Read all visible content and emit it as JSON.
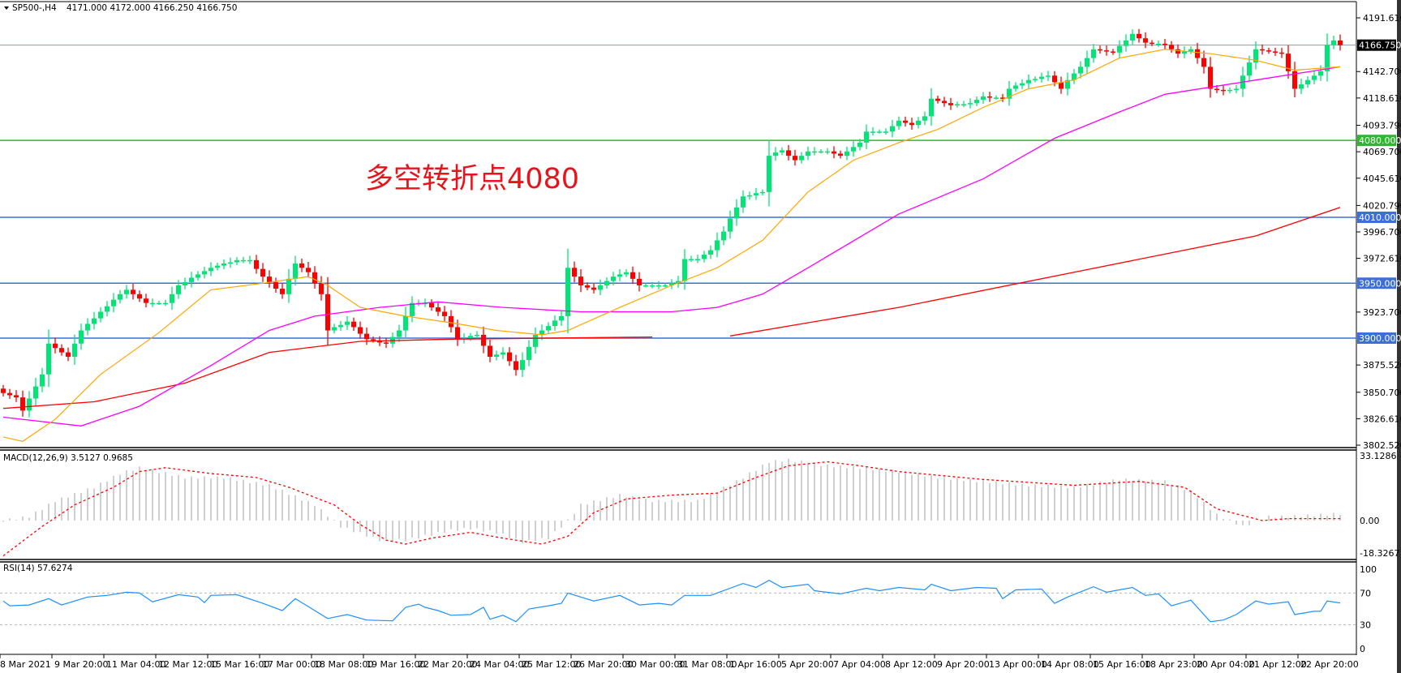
{
  "header": {
    "symbol": "SP500-,H4",
    "ohlc": "4171.000 4172.000 4166.250 4166.750"
  },
  "annotation": "多空转折点4080",
  "colors": {
    "bull": "#00e676",
    "bear": "#ff0000",
    "ma_fast": "#ffa500",
    "ma_mid": "#ff00ff",
    "ma_slow": "#ff0000",
    "level_green": "#2db92d",
    "level_blue": "#3d6fd9",
    "rsi": "#1e90ff",
    "macd_hist": "#c0c0c0",
    "macd_signal": "#ff0000"
  },
  "chart_data": [
    {
      "type": "candlestick",
      "title": "SP500-,H4",
      "price_ticks": [
        "4191.610",
        "4142.700",
        "4118.610",
        "4093.790",
        "4069.700",
        "4045.610",
        "4020.790",
        "3996.700",
        "3972.610",
        "3923.700",
        "3875.520",
        "3850.700",
        "3826.610",
        "3802.520"
      ],
      "ylim": [
        3802.52,
        4191.61
      ],
      "x_tick_labels": [
        "8 Mar 2021",
        "9 Mar 20:00",
        "11 Mar 04:00",
        "12 Mar 12:00",
        "15 Mar 16:00",
        "17 Mar 00:00",
        "18 Mar 08:00",
        "19 Mar 16:00",
        "22 Mar 20:00",
        "24 Mar 04:00",
        "25 Mar 12:00",
        "26 Mar 20:00",
        "30 Mar 00:00",
        "31 Mar 08:00",
        "1 Apr 16:00",
        "5 Apr 20:00",
        "7 Apr 04:00",
        "8 Apr 12:00",
        "9 Apr 20:00",
        "13 Apr 00:00",
        "14 Apr 08:00",
        "15 Apr 16:00",
        "18 Apr 23:00",
        "20 Apr 04:00",
        "21 Apr 12:00",
        "22 Apr 20:00"
      ],
      "current_price": {
        "value": 4166.75,
        "label": "4166.750"
      },
      "levels": [
        {
          "value": 4080,
          "label": "4080.000",
          "color": "#2db92d"
        },
        {
          "value": 4010,
          "label": "4010.000",
          "color": "#3d6fd9"
        },
        {
          "value": 3950,
          "label": "3950.000",
          "color": "#3d6fd9"
        },
        {
          "value": 3900,
          "label": "3900.000",
          "color": "#3d6fd9"
        }
      ],
      "closes": [
        3850,
        3848,
        3846,
        3834,
        3845,
        3856,
        3867,
        3895,
        3891,
        3887,
        3883,
        3895,
        3907,
        3913,
        3918,
        3924,
        3929,
        3935,
        3940,
        3944,
        3940,
        3936,
        3932,
        3932,
        3932,
        3932,
        3940,
        3948,
        3951,
        3955,
        3958,
        3961,
        3964,
        3966,
        3968,
        3969,
        3971,
        3971,
        3971,
        3963,
        3956,
        3951,
        3945,
        3940,
        3954,
        3968,
        3964,
        3960,
        3950,
        3940,
        3907,
        3910,
        3912,
        3915,
        3910,
        3904,
        3899,
        3898,
        3896,
        3895,
        3901,
        3907,
        3920,
        3932,
        3932,
        3932,
        3928,
        3924,
        3920,
        3910,
        3899,
        3900,
        3902,
        3903,
        3893,
        3883,
        3885,
        3887,
        3879,
        3871,
        3880,
        3892,
        3903,
        3907,
        3911,
        3916,
        3920,
        3964,
        3956,
        3948,
        3946,
        3944,
        3948,
        3952,
        3956,
        3958,
        3960,
        3954,
        3948,
        3948,
        3948,
        3948,
        3948,
        3950,
        3952,
        3972,
        3972,
        3972,
        3976,
        3980,
        3989,
        3997,
        4009,
        4019,
        4029,
        4030,
        4032,
        4033,
        4066,
        4069,
        4071,
        4066,
        4062,
        4066,
        4070,
        4070,
        4070,
        4070,
        4068,
        4066,
        4070,
        4074,
        4078,
        4088,
        4088,
        4088,
        4088,
        4093,
        4098,
        4096,
        4094,
        4098,
        4102,
        4118,
        4116,
        4114,
        4112,
        4113,
        4113,
        4114,
        4117,
        4120,
        4119,
        4119,
        4118,
        4127,
        4130,
        4132,
        4135,
        4136,
        4138,
        4139,
        4133,
        4127,
        4135,
        4141,
        4147,
        4155,
        4163,
        4162,
        4161,
        4160,
        4166,
        4171,
        4177,
        4173,
        4169,
        4168,
        4168,
        4167,
        4163,
        4159,
        4161,
        4163,
        4155,
        4147,
        4127,
        4126,
        4125,
        4126,
        4127,
        4139,
        4151,
        4163,
        4162,
        4161,
        4160,
        4159,
        4143,
        4127,
        4131,
        4135,
        4139,
        4143,
        4167,
        4171,
        4166.75
      ],
      "ma_fast": [
        [
          0,
          3810
        ],
        [
          3,
          3806
        ],
        [
          8,
          3826
        ],
        [
          15,
          3867
        ],
        [
          24,
          3905
        ],
        [
          32,
          3944
        ],
        [
          40,
          3950
        ],
        [
          47,
          3956
        ],
        [
          50,
          3948
        ],
        [
          55,
          3928
        ],
        [
          62,
          3920
        ],
        [
          69,
          3914
        ],
        [
          76,
          3907
        ],
        [
          83,
          3903
        ],
        [
          87,
          3907
        ],
        [
          95,
          3928
        ],
        [
          103,
          3948
        ],
        [
          110,
          3964
        ],
        [
          117,
          3989
        ],
        [
          124,
          4033
        ],
        [
          131,
          4062
        ],
        [
          138,
          4078
        ],
        [
          144,
          4090
        ],
        [
          151,
          4110
        ],
        [
          158,
          4127
        ],
        [
          165,
          4135
        ],
        [
          172,
          4155
        ],
        [
          179,
          4163
        ],
        [
          186,
          4159
        ],
        [
          193,
          4153
        ],
        [
          199,
          4144
        ],
        [
          206,
          4147
        ]
      ],
      "ma_mid": [
        [
          0,
          3828
        ],
        [
          12,
          3820
        ],
        [
          21,
          3838
        ],
        [
          32,
          3875
        ],
        [
          41,
          3907
        ],
        [
          48,
          3920
        ],
        [
          58,
          3928
        ],
        [
          67,
          3933
        ],
        [
          77,
          3928
        ],
        [
          89,
          3924
        ],
        [
          103,
          3924
        ],
        [
          110,
          3928
        ],
        [
          117,
          3940
        ],
        [
          124,
          3964
        ],
        [
          138,
          4013
        ],
        [
          151,
          4045
        ],
        [
          162,
          4082
        ],
        [
          172,
          4106
        ],
        [
          179,
          4122
        ],
        [
          193,
          4135
        ],
        [
          206,
          4147
        ]
      ],
      "ma_slow": [
        [
          0,
          3836
        ],
        [
          14,
          3842
        ],
        [
          28,
          3859
        ],
        [
          41,
          3887
        ],
        [
          55,
          3897
        ],
        [
          69,
          3899
        ],
        [
          100,
          3901
        ],
        null,
        [
          112,
          3902
        ],
        [
          138,
          3928
        ],
        [
          165,
          3960
        ],
        [
          193,
          3993
        ],
        [
          206,
          4019
        ]
      ]
    },
    {
      "type": "bar",
      "title": "MACD(12,26,9) 3.5127 0.9685",
      "ticks": [
        "33.1286",
        "0.00",
        "-18.3267"
      ],
      "ylim": [
        -18.3267,
        33.1286
      ],
      "macd": [
        [
          0,
          0
        ],
        [
          4,
          2
        ],
        [
          8,
          10
        ],
        [
          14,
          17
        ],
        [
          18,
          24
        ],
        [
          21,
          27
        ],
        [
          28,
          22
        ],
        [
          34,
          22
        ],
        [
          41,
          18
        ],
        [
          48,
          8
        ],
        [
          52,
          -3
        ],
        [
          58,
          -10
        ],
        [
          62,
          -10
        ],
        [
          69,
          -5
        ],
        [
          72,
          -4
        ],
        [
          76,
          -6
        ],
        [
          80,
          -11
        ],
        [
          84,
          -9
        ],
        [
          87,
          0
        ],
        [
          89,
          8
        ],
        [
          95,
          13
        ],
        [
          100,
          10
        ],
        [
          107,
          10
        ],
        [
          113,
          20
        ],
        [
          118,
          30
        ],
        [
          121,
          31
        ],
        [
          127,
          28
        ],
        [
          132,
          27
        ],
        [
          138,
          25
        ],
        [
          144,
          22
        ],
        [
          151,
          20
        ],
        [
          158,
          18
        ],
        [
          165,
          17
        ],
        [
          172,
          21
        ],
        [
          179,
          20
        ],
        [
          183,
          15
        ],
        [
          187,
          3
        ],
        [
          191,
          -3
        ],
        [
          195,
          2
        ],
        [
          198,
          2
        ],
        [
          206,
          3.5
        ]
      ],
      "signal": [
        [
          0,
          -18
        ],
        [
          6,
          -3
        ],
        [
          11,
          8
        ],
        [
          17,
          17
        ],
        [
          21,
          25
        ],
        [
          25,
          27
        ],
        [
          32,
          24
        ],
        [
          39,
          22
        ],
        [
          44,
          17
        ],
        [
          51,
          8
        ],
        [
          55,
          -2
        ],
        [
          59,
          -10
        ],
        [
          62,
          -12
        ],
        [
          66,
          -9
        ],
        [
          72,
          -6
        ],
        [
          77,
          -9
        ],
        [
          83,
          -12
        ],
        [
          87,
          -8
        ],
        [
          91,
          4
        ],
        [
          96,
          11
        ],
        [
          103,
          13
        ],
        [
          110,
          14
        ],
        [
          116,
          22
        ],
        [
          121,
          28
        ],
        [
          127,
          30
        ],
        [
          132,
          28
        ],
        [
          138,
          25
        ],
        [
          151,
          21
        ],
        [
          165,
          18
        ],
        [
          175,
          20
        ],
        [
          182,
          17
        ],
        [
          187,
          6
        ],
        [
          194,
          0
        ],
        [
          198,
          1
        ],
        [
          206,
          1
        ]
      ]
    },
    {
      "type": "line",
      "title": "RSI(14) 57.6274",
      "ticks": [
        "100",
        "70",
        "30",
        "0"
      ],
      "ylim": [
        0,
        100
      ],
      "levels": [
        70,
        30
      ],
      "rsi": [
        [
          0,
          60
        ],
        [
          1,
          54
        ],
        [
          4,
          55
        ],
        [
          7,
          63
        ],
        [
          9,
          55
        ],
        [
          13,
          65
        ],
        [
          16,
          67
        ],
        [
          19,
          71
        ],
        [
          21,
          70
        ],
        [
          23,
          59
        ],
        [
          27,
          68
        ],
        [
          30,
          65
        ],
        [
          31,
          58
        ],
        [
          32,
          67
        ],
        [
          36,
          68
        ],
        [
          40,
          57
        ],
        [
          43,
          48
        ],
        [
          45,
          63
        ],
        [
          48,
          48
        ],
        [
          50,
          38
        ],
        [
          53,
          43
        ],
        [
          56,
          36
        ],
        [
          60,
          35
        ],
        [
          62,
          52
        ],
        [
          64,
          56
        ],
        [
          65,
          52
        ],
        [
          67,
          48
        ],
        [
          69,
          42
        ],
        [
          72,
          43
        ],
        [
          74,
          52
        ],
        [
          75,
          37
        ],
        [
          77,
          42
        ],
        [
          79,
          34
        ],
        [
          81,
          50
        ],
        [
          84,
          54
        ],
        [
          86,
          57
        ],
        [
          87,
          70
        ],
        [
          91,
          60
        ],
        [
          95,
          67
        ],
        [
          98,
          55
        ],
        [
          101,
          57
        ],
        [
          103,
          55
        ],
        [
          105,
          67
        ],
        [
          109,
          67
        ],
        [
          114,
          82
        ],
        [
          116,
          77
        ],
        [
          118,
          86
        ],
        [
          120,
          77
        ],
        [
          124,
          81
        ],
        [
          125,
          73
        ],
        [
          129,
          69
        ],
        [
          133,
          76
        ],
        [
          135,
          73
        ],
        [
          138,
          77
        ],
        [
          142,
          74
        ],
        [
          143,
          81
        ],
        [
          146,
          73
        ],
        [
          150,
          77
        ],
        [
          153,
          76
        ],
        [
          154,
          63
        ],
        [
          156,
          74
        ],
        [
          160,
          75
        ],
        [
          162,
          57
        ],
        [
          164,
          65
        ],
        [
          168,
          78
        ],
        [
          170,
          71
        ],
        [
          174,
          77
        ],
        [
          176,
          67
        ],
        [
          178,
          69
        ],
        [
          180,
          54
        ],
        [
          183,
          61
        ],
        [
          186,
          34
        ],
        [
          188,
          36
        ],
        [
          190,
          43
        ],
        [
          193,
          60
        ],
        [
          195,
          56
        ],
        [
          198,
          59
        ],
        [
          199,
          43
        ],
        [
          202,
          47
        ],
        [
          203,
          47
        ],
        [
          204,
          60
        ],
        [
          206,
          57.6
        ]
      ]
    }
  ]
}
